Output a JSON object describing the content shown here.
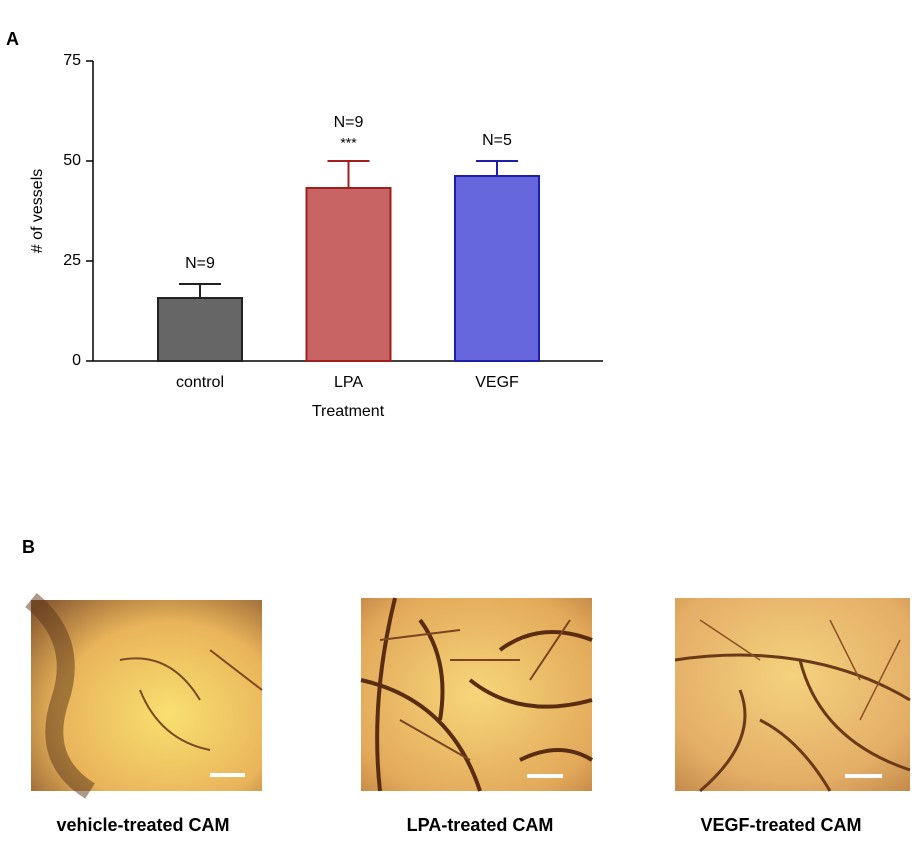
{
  "panels": {
    "a": "A",
    "b": "B"
  },
  "chart_data": {
    "type": "bar",
    "y_label": "# of vessels",
    "x_label": "Treatment",
    "categories": [
      "control",
      "LPA",
      "VEGF"
    ],
    "values": [
      15.75,
      43.25,
      46.25
    ],
    "errors": [
      3.5,
      6.75,
      3.75
    ],
    "colors": [
      "#666666",
      "#c86464",
      "#6666dd"
    ],
    "edge_colors": [
      "#222222",
      "#a01e1e",
      "#1e1eaa"
    ],
    "annotations": [
      "N=9",
      "N=9",
      "N=5"
    ],
    "significance": [
      null,
      "***",
      null
    ],
    "ylim": [
      0,
      75
    ],
    "yticks": [
      0,
      25,
      50,
      75
    ],
    "grid": false
  },
  "images": [
    {
      "caption": "vehicle-treated CAM"
    },
    {
      "caption": "LPA-treated CAM"
    },
    {
      "caption": "VEGF-treated CAM"
    }
  ]
}
